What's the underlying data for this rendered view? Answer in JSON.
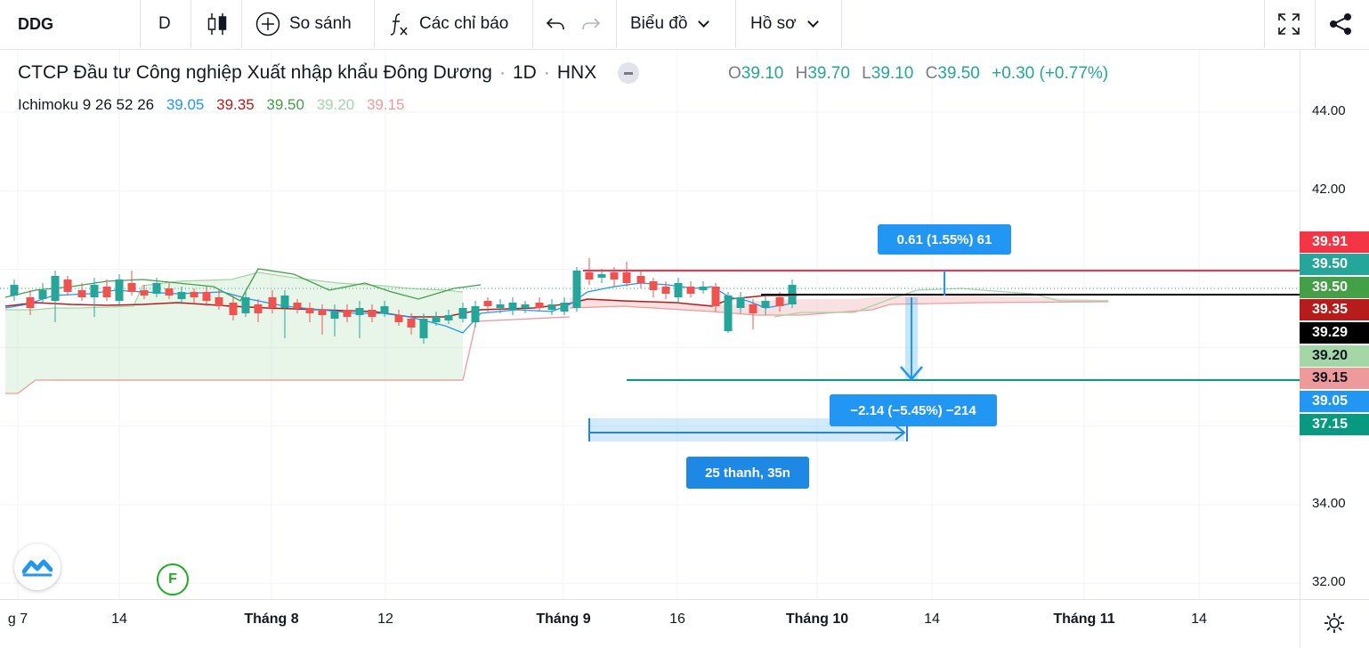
{
  "toolbar": {
    "symbol": "DDG",
    "interval": "D",
    "compare_label": "So sánh",
    "indicators_label": "Các chỉ báo",
    "chart_type_label": "Biểu đồ",
    "profile_label": "Hồ sơ"
  },
  "legend": {
    "title": "CTCP Đầu tư Công nghiệp Xuất nhập khẩu Đông Dương",
    "timeframe": "1D",
    "exchange": "HNX",
    "sep": "·",
    "o_key": "O",
    "o_val": "39.10",
    "h_key": "H",
    "h_val": "39.70",
    "l_key": "L",
    "l_val": "39.10",
    "c_key": "C",
    "c_val": "39.50",
    "change": "+0.30 (+0.77%)",
    "ichimoku_name": "Ichimoku 9 26 52 26",
    "ichimoku_values": [
      "39.05",
      "39.35",
      "39.50",
      "39.20",
      "39.15"
    ],
    "ichimoku_colors": [
      "#2196f3",
      "#b71c1c",
      "#43a047",
      "#a5d6a7",
      "#ef9a9a"
    ]
  },
  "price_axis": {
    "ticks": [
      "44.00",
      "42.00",
      "34.00",
      "32.00"
    ]
  },
  "price_labels": [
    {
      "text": "39.91",
      "color": "#f23645"
    },
    {
      "text": "39.50",
      "color": "#26a69a"
    },
    {
      "text": "39.50",
      "color": "#43a047"
    },
    {
      "text": "39.35",
      "color": "#b71c1c"
    },
    {
      "text": "39.29",
      "color": "#000000"
    },
    {
      "text": "39.20",
      "color": "#a5d6a7"
    },
    {
      "text": "39.15",
      "color": "#ef9a9a"
    },
    {
      "text": "39.05",
      "color": "#2196f3"
    },
    {
      "text": "37.15",
      "color": "#089981"
    }
  ],
  "time_axis": {
    "ticks": [
      "g 7",
      "14",
      "Tháng 8",
      "12",
      "Tháng 9",
      "16",
      "Tháng 10",
      "14",
      "Tháng 11",
      "14"
    ]
  },
  "measure": {
    "upper_label": "0.61 (1.55%) 61",
    "lower_label": "−2.14 (−5.45%) −214",
    "range_label": "25 thanh, 35n"
  },
  "badge": {
    "letter": "F"
  },
  "colors": {
    "up": "#26a69a",
    "down": "#ef5350",
    "accent": "#2962ff",
    "measure_blue": "#2196f3"
  }
}
